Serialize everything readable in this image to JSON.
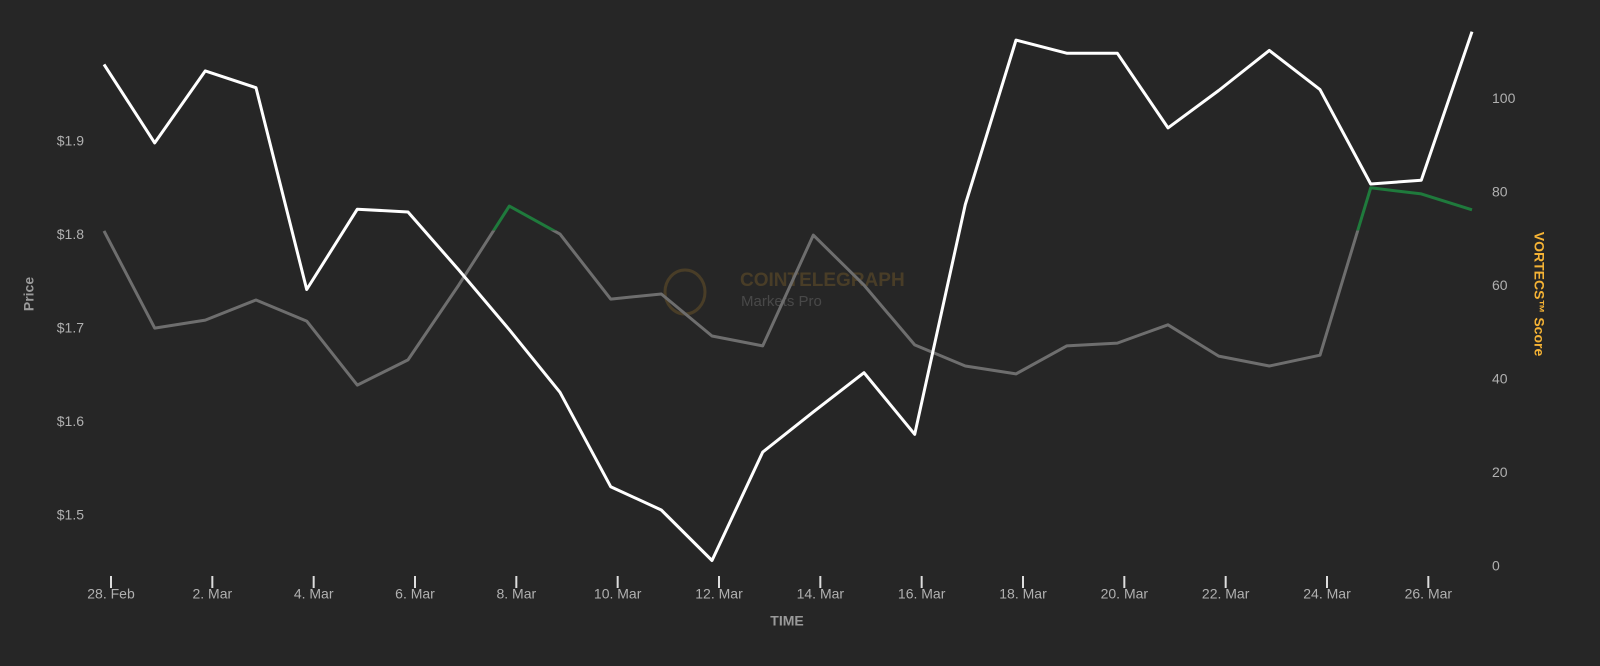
{
  "chart_data": {
    "type": "line",
    "x_label": "TIME",
    "y_label": "Price",
    "y2_label": "VORTECS™ Score",
    "y2_label_color": "#f5b335",
    "watermark": {
      "title": "COINTELEGRAPH",
      "subtitle": "Markets Pro"
    },
    "categories": [
      "28. Feb",
      null,
      "2. Mar",
      null,
      "4. Mar",
      null,
      "6. Mar",
      null,
      "8. Mar",
      null,
      "10. Mar",
      null,
      "12. Mar",
      null,
      "14. Mar",
      null,
      "16. Mar",
      null,
      "18. Mar",
      null,
      "20. Mar",
      null,
      "22. Mar",
      null,
      "24. Mar",
      null,
      "26. Mar",
      null
    ],
    "series": [
      {
        "name": "Price",
        "color": "#ffffff",
        "axis": "y",
        "values": [
          1.983,
          1.899,
          1.976,
          1.958,
          1.742,
          1.828,
          1.825,
          1.763,
          1.699,
          1.632,
          1.531,
          1.506,
          1.452,
          1.568,
          1.611,
          1.653,
          1.587,
          1.833,
          2.009,
          1.995,
          1.995,
          1.915,
          1.955,
          1.998,
          1.956,
          1.855,
          1.859,
          2.018
        ]
      },
      {
        "name": "VORTECS™ Score",
        "color": "#6e6e6e",
        "axis": "y2",
        "zones": [
          {
            "upto": 72,
            "color": "#6e6e6e"
          },
          {
            "color": "#1f7a3c"
          }
        ],
        "values": [
          71.9,
          51.1,
          52.8,
          57.1,
          52.6,
          38.9,
          44.3,
          60.3,
          77.2,
          71.2,
          57.3,
          58.4,
          49.4,
          47.3,
          71.0,
          60.3,
          47.5,
          43.0,
          41.3,
          47.3,
          47.9,
          51.8,
          45.1,
          43.0,
          45.3,
          81.1,
          79.8,
          76.4
        ]
      }
    ],
    "ylim": [
      1.445,
      2.0305
    ],
    "yticks": [
      {
        "value": 1.5,
        "label": "$1.5"
      },
      {
        "value": 1.6,
        "label": "$1.6"
      },
      {
        "value": 1.7,
        "label": "$1.7"
      },
      {
        "value": 1.8,
        "label": "$1.8"
      },
      {
        "value": 1.9,
        "label": "$1.9"
      }
    ],
    "y2lim": [
      0,
      117
    ],
    "y2ticks": [
      0,
      20,
      40,
      60,
      80,
      100
    ],
    "grid": false
  }
}
